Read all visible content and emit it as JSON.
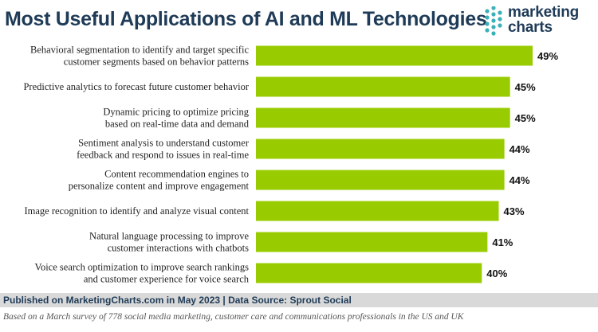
{
  "title": "Most Useful Applications of AI and ML Technologies",
  "logo": {
    "line1": "marketing",
    "line2": "charts"
  },
  "colors": {
    "bar": "#99cc00",
    "title": "#1f3b57",
    "footer_bg": "#d9d9d9",
    "logo_dot": "#3ab0b8"
  },
  "chart_data": {
    "type": "bar",
    "orientation": "horizontal",
    "categories": [
      [
        "Behavioral segmentation to identify and target specific",
        "customer segments based on behavior patterns"
      ],
      [
        "Predictive analytics to forecast future customer behavior"
      ],
      [
        "Dynamic pricing to optimize pricing",
        "based on real-time data and demand"
      ],
      [
        "Sentiment analysis to understand customer",
        "feedback and respond to issues in real-time"
      ],
      [
        "Content recommendation engines to",
        "personalize content and improve engagement"
      ],
      [
        "Image recognition to identify and analyze visual content"
      ],
      [
        "Natural language processing to improve",
        "customer interactions with chatbots"
      ],
      [
        "Voice search optimization to improve search rankings",
        "and customer experience for voice search"
      ]
    ],
    "values": [
      49,
      45,
      45,
      44,
      44,
      43,
      41,
      40
    ],
    "value_labels": [
      "49%",
      "45%",
      "45%",
      "44%",
      "44%",
      "43%",
      "41%",
      "40%"
    ],
    "xlim": [
      0,
      49
    ],
    "grid": false,
    "legend": "none"
  },
  "footer": {
    "source": "Published on MarketingCharts.com in May 2023 | Data Source: Sprout Social",
    "note": "Based on a March survey of 778 social media marketing, customer care and communications professionals in the US and UK"
  }
}
